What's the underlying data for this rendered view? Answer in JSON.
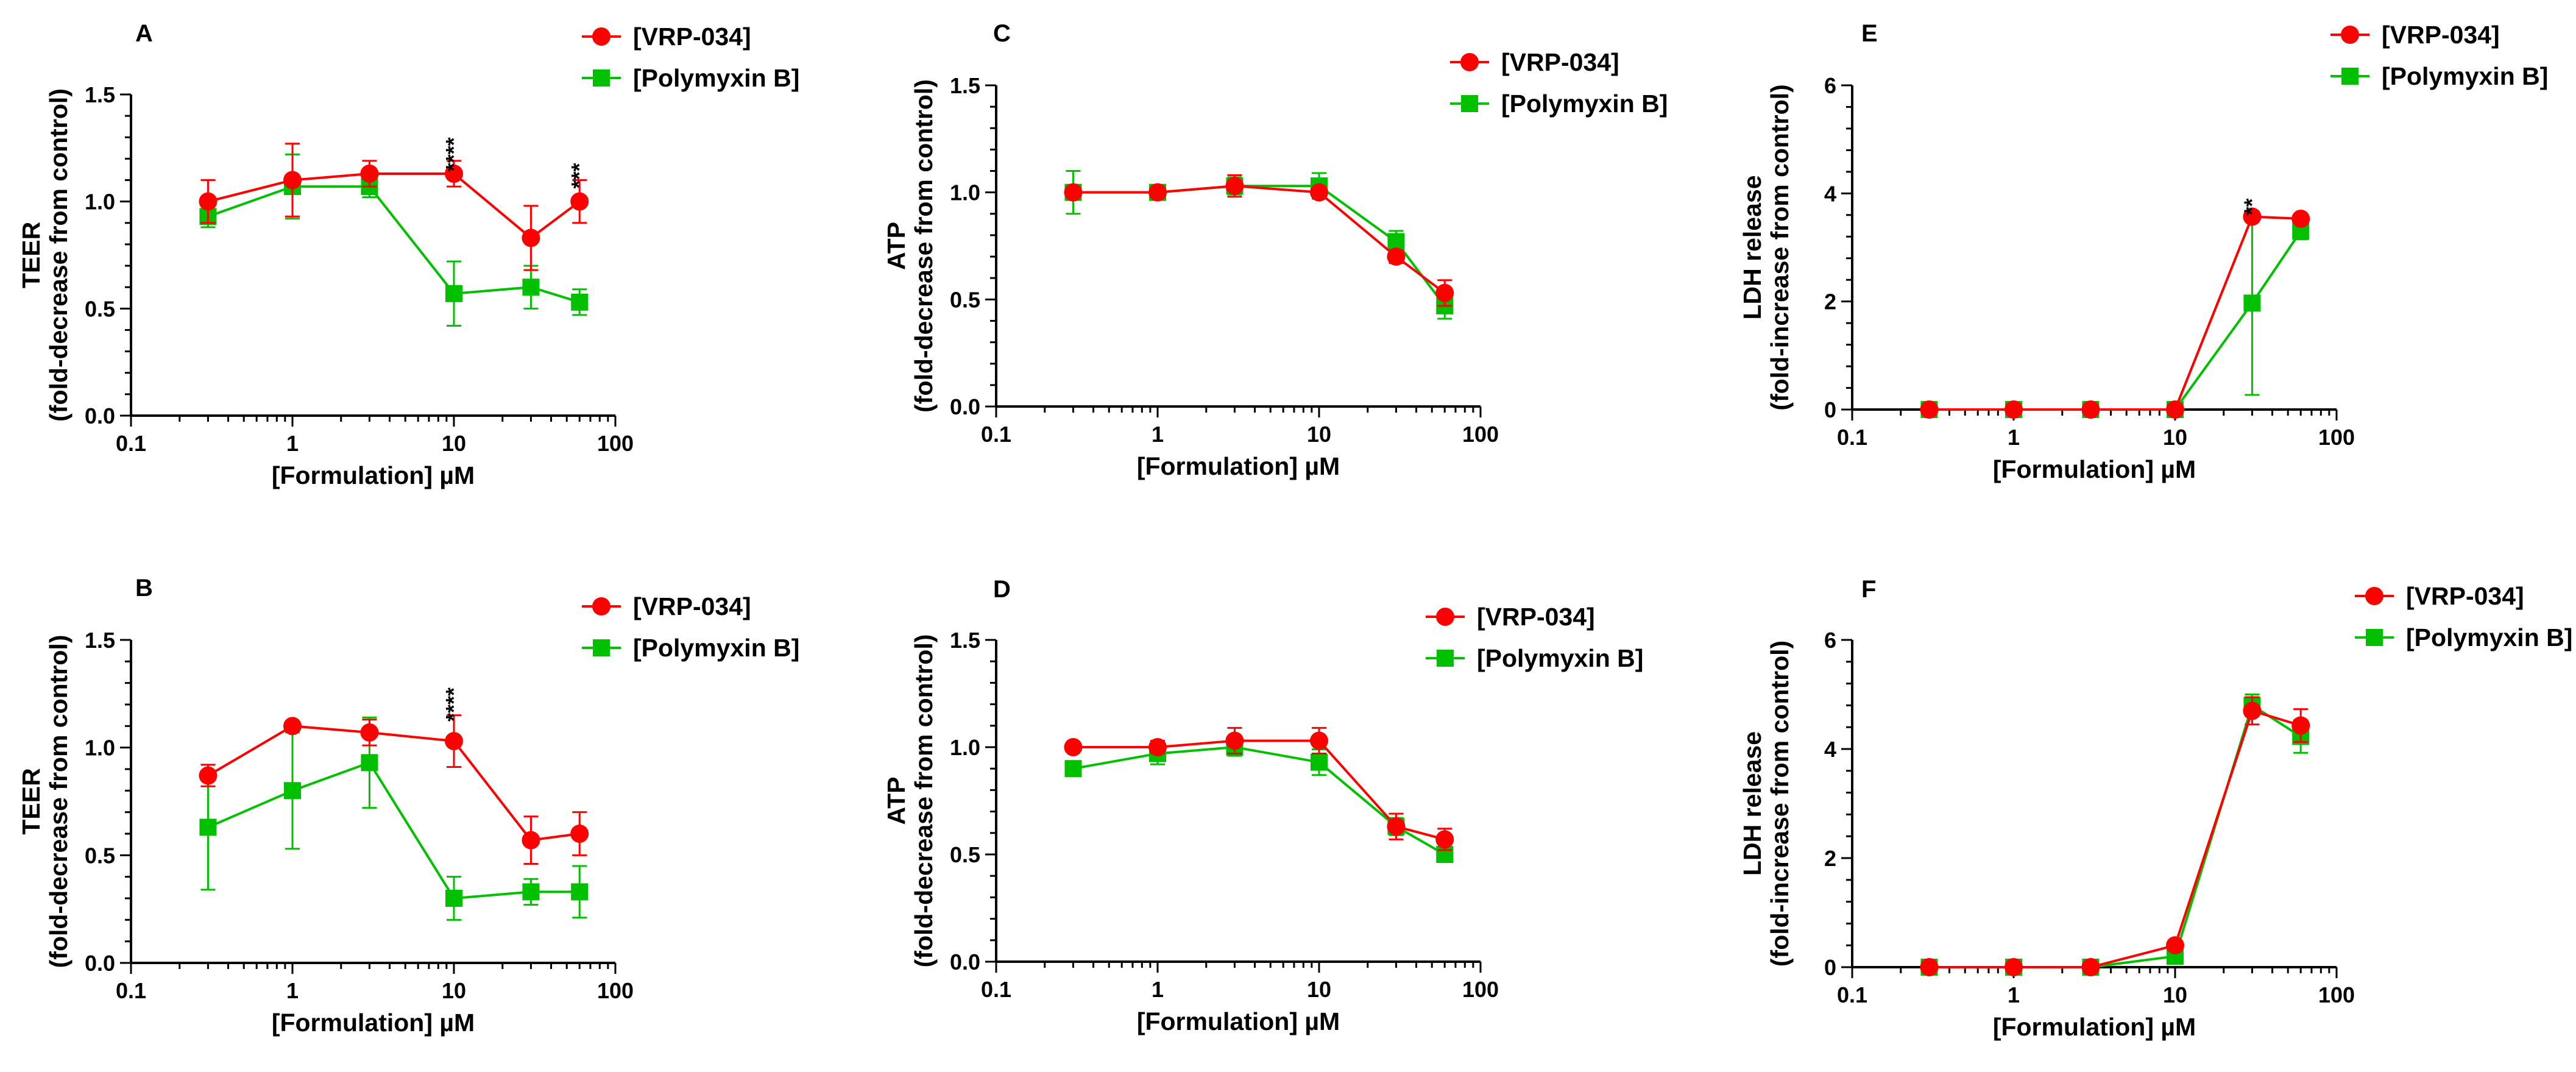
{
  "chart_data": [
    {
      "type": "line",
      "panel": "A",
      "xlabel": "[Formulation] µM",
      "ylabel": [
        "TEER",
        "(fold-decrease from control)"
      ],
      "xscale": "log",
      "xlim": [
        0.1,
        100
      ],
      "ylim": [
        0,
        1.5
      ],
      "xticks": [
        0.1,
        1,
        10,
        100
      ],
      "xtick_labels": [
        "0.1",
        "1",
        "10",
        "100"
      ],
      "yticks": [
        0,
        0.5,
        1.0,
        1.5
      ],
      "ytick_labels": [
        "0.0",
        "0.5",
        "1.0",
        "1.5"
      ],
      "legend": "top-right",
      "x": [
        0.3,
        1,
        3,
        10,
        30,
        60
      ],
      "series": [
        {
          "name": "[VRP-034]",
          "color": "#ff0000",
          "marker": "circle",
          "values": [
            1.0,
            1.1,
            1.13,
            1.13,
            0.83,
            1.0
          ],
          "errors": [
            0.1,
            0.17,
            0.06,
            0.06,
            0.15,
            0.1
          ]
        },
        {
          "name": "[Polymyxin B]",
          "color": "#00c000",
          "marker": "square",
          "values": [
            0.93,
            1.07,
            1.07,
            0.57,
            0.6,
            0.53
          ],
          "errors": [
            0.05,
            0.15,
            0.05,
            0.15,
            0.1,
            0.06
          ]
        }
      ],
      "annotations": [
        {
          "x": 10,
          "y": 1.22,
          "text": "****"
        },
        {
          "x": 60,
          "y": 1.12,
          "text": "***"
        }
      ]
    },
    {
      "type": "line",
      "panel": "B",
      "xlabel": "[Formulation] µM",
      "ylabel": [
        "TEER",
        "(fold-decrease from control)"
      ],
      "xscale": "log",
      "xlim": [
        0.1,
        100
      ],
      "ylim": [
        0,
        1.5
      ],
      "xticks": [
        0.1,
        1,
        10,
        100
      ],
      "xtick_labels": [
        "0.1",
        "1",
        "10",
        "100"
      ],
      "yticks": [
        0,
        0.5,
        1.0,
        1.5
      ],
      "ytick_labels": [
        "0.0",
        "0.5",
        "1.0",
        "1.5"
      ],
      "legend": "top-right",
      "x": [
        0.3,
        1,
        3,
        10,
        30,
        60
      ],
      "series": [
        {
          "name": "[VRP-034]",
          "color": "#ff0000",
          "marker": "circle",
          "values": [
            0.87,
            1.1,
            1.07,
            1.03,
            0.57,
            0.6
          ],
          "errors": [
            0.05,
            0.02,
            0.06,
            0.12,
            0.11,
            0.1
          ]
        },
        {
          "name": "[Polymyxin B]",
          "color": "#00c000",
          "marker": "square",
          "values": [
            0.63,
            0.8,
            0.93,
            0.3,
            0.33,
            0.33
          ],
          "errors": [
            0.29,
            0.27,
            0.21,
            0.1,
            0.06,
            0.12
          ]
        }
      ],
      "annotations": [
        {
          "x": 10,
          "y": 1.2,
          "text": "****"
        }
      ]
    },
    {
      "type": "line",
      "panel": "C",
      "xlabel": "[Formulation] µM",
      "ylabel": [
        "ATP",
        "(fold-decrease from control)"
      ],
      "xscale": "log",
      "xlim": [
        0.1,
        100
      ],
      "ylim": [
        0,
        1.5
      ],
      "xticks": [
        0.1,
        1,
        10,
        100
      ],
      "xtick_labels": [
        "0.1",
        "1",
        "10",
        "100"
      ],
      "yticks": [
        0,
        0.5,
        1.0,
        1.5
      ],
      "ytick_labels": [
        "0.0",
        "0.5",
        "1.0",
        "1.5"
      ],
      "legend": "top-right",
      "x": [
        0.3,
        1,
        3,
        10,
        30,
        60
      ],
      "series": [
        {
          "name": "[VRP-034]",
          "color": "#ff0000",
          "marker": "circle",
          "values": [
            1.0,
            1.0,
            1.03,
            1.0,
            0.7,
            0.53
          ],
          "errors": [
            0.02,
            0.02,
            0.05,
            0.02,
            0.03,
            0.06
          ]
        },
        {
          "name": "[Polymyxin B]",
          "color": "#00c000",
          "marker": "square",
          "values": [
            1.0,
            1.0,
            1.03,
            1.03,
            0.77,
            0.47
          ],
          "errors": [
            0.1,
            0.02,
            0.04,
            0.06,
            0.05,
            0.06
          ]
        }
      ],
      "annotations": []
    },
    {
      "type": "line",
      "panel": "D",
      "xlabel": "[Formulation] µM",
      "ylabel": [
        "ATP",
        "(fold-decrease from control)"
      ],
      "xscale": "log",
      "xlim": [
        0.1,
        100
      ],
      "ylim": [
        0,
        1.5
      ],
      "xticks": [
        0.1,
        1,
        10,
        100
      ],
      "xtick_labels": [
        "0.1",
        "1",
        "10",
        "100"
      ],
      "yticks": [
        0,
        0.5,
        1.0,
        1.5
      ],
      "ytick_labels": [
        "0.0",
        "0.5",
        "1.0",
        "1.5"
      ],
      "legend": "top-right",
      "x": [
        0.3,
        1,
        3,
        10,
        30,
        60
      ],
      "series": [
        {
          "name": "[VRP-034]",
          "color": "#ff0000",
          "marker": "circle",
          "values": [
            1.0,
            1.0,
            1.03,
            1.03,
            0.63,
            0.57
          ],
          "errors": [
            0.02,
            0.03,
            0.06,
            0.06,
            0.06,
            0.05
          ]
        },
        {
          "name": "[Polymyxin B]",
          "color": "#00c000",
          "marker": "square",
          "values": [
            0.9,
            0.97,
            1.0,
            0.93,
            0.63,
            0.5
          ],
          "errors": [
            0.02,
            0.05,
            0.04,
            0.06,
            0.04,
            0.03
          ]
        }
      ],
      "annotations": []
    },
    {
      "type": "line",
      "panel": "E",
      "xlabel": "[Formulation] µM",
      "ylabel": [
        "LDH release",
        "(fold-increase from control)"
      ],
      "xscale": "log",
      "xlim": [
        0.1,
        100
      ],
      "ylim": [
        0,
        6
      ],
      "xticks": [
        0.1,
        1,
        10,
        100
      ],
      "xtick_labels": [
        "0.1",
        "1",
        "10",
        "100"
      ],
      "yticks": [
        0,
        2,
        4,
        6
      ],
      "ytick_labels": [
        "0",
        "2",
        "4",
        "6"
      ],
      "legend": "top-right",
      "x": [
        0.3,
        1,
        3,
        10,
        30,
        60
      ],
      "series": [
        {
          "name": "[VRP-034]",
          "color": "#ff0000",
          "marker": "circle",
          "values": [
            0,
            0,
            0,
            0,
            3.57,
            3.53
          ],
          "errors": [
            0.02,
            0.02,
            0.02,
            0.02,
            0.05,
            0.05
          ]
        },
        {
          "name": "[Polymyxin B]",
          "color": "#00c000",
          "marker": "square",
          "values": [
            0,
            0,
            0,
            0,
            1.97,
            3.3
          ],
          "errors": [
            0.02,
            0.02,
            0.02,
            0.02,
            1.7,
            0.15
          ]
        }
      ],
      "annotations": [
        {
          "x": 30,
          "y": 3.75,
          "text": "**"
        }
      ]
    },
    {
      "type": "line",
      "panel": "F",
      "xlabel": "[Formulation] µM",
      "ylabel": [
        "LDH release",
        "(fold-increase from control)"
      ],
      "xscale": "log",
      "xlim": [
        0.1,
        100
      ],
      "ylim": [
        0,
        6
      ],
      "xticks": [
        0.1,
        1,
        10,
        100
      ],
      "xtick_labels": [
        "0.1",
        "1",
        "10",
        "100"
      ],
      "yticks": [
        0,
        2,
        4,
        6
      ],
      "ytick_labels": [
        "0",
        "2",
        "4",
        "6"
      ],
      "legend": "top-right",
      "x": [
        0.3,
        1,
        3,
        10,
        30,
        60
      ],
      "series": [
        {
          "name": "[VRP-034]",
          "color": "#ff0000",
          "marker": "circle",
          "values": [
            0,
            0,
            0,
            0.4,
            4.7,
            4.43
          ],
          "errors": [
            0.02,
            0.02,
            0.02,
            0.05,
            0.25,
            0.3
          ]
        },
        {
          "name": "[Polymyxin B]",
          "color": "#00c000",
          "marker": "square",
          "values": [
            0,
            0,
            0,
            0.2,
            4.8,
            4.23
          ],
          "errors": [
            0.02,
            0.02,
            0.02,
            0.05,
            0.2,
            0.3
          ]
        }
      ],
      "annotations": []
    }
  ]
}
